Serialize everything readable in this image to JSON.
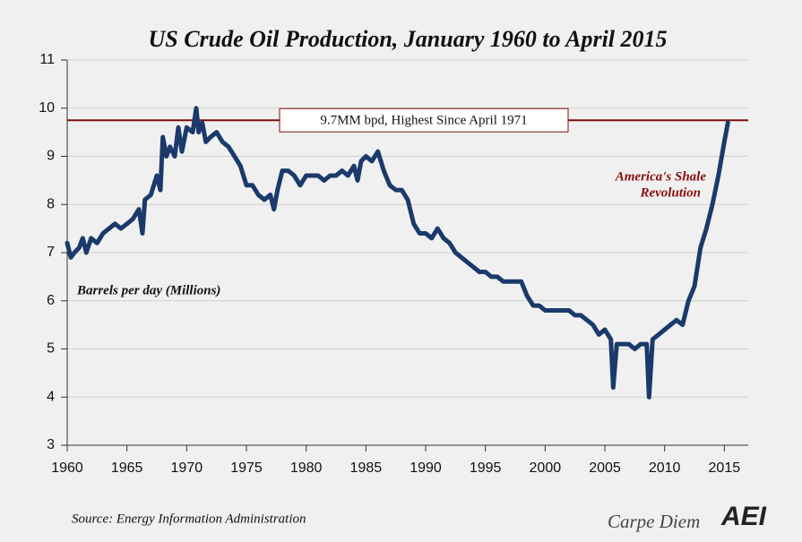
{
  "chart_data": {
    "type": "line",
    "title": "US Crude Oil Production, January 1960 to April 2015",
    "ylabel": "Barrels per day (Millions)",
    "source": "Source: Energy Information Administration",
    "brand": "Carpe Diem",
    "logo": "AEI",
    "annotations": [
      "9.7MM bpd, Highest Since April 1971",
      "America's Shale",
      "Revolution"
    ],
    "hline": 9.75,
    "hline_color": "#7a0c0c",
    "grid": true,
    "xlim": [
      1960,
      2017
    ],
    "xticks": [
      1960,
      1965,
      1970,
      1975,
      1980,
      1985,
      1990,
      1995,
      2000,
      2005,
      2010,
      2015
    ],
    "ylim": [
      3,
      11
    ],
    "yticks": [
      3,
      4,
      5,
      6,
      7,
      8,
      9,
      10,
      11
    ],
    "x": [
      1960,
      1960.3,
      1960.6,
      1961,
      1961.3,
      1961.6,
      1962,
      1962.5,
      1963,
      1963.5,
      1964,
      1964.5,
      1965,
      1965.5,
      1966,
      1966.3,
      1966.5,
      1967,
      1967.5,
      1967.8,
      1968,
      1968.3,
      1968.6,
      1969,
      1969.3,
      1969.6,
      1970,
      1970.5,
      1970.8,
      1971,
      1971.3,
      1971.6,
      1972,
      1972.5,
      1973,
      1973.5,
      1974,
      1974.5,
      1975,
      1975.5,
      1976,
      1976.5,
      1977,
      1977.3,
      1977.6,
      1978,
      1978.5,
      1979,
      1979.5,
      1980,
      1980.5,
      1981,
      1981.5,
      1982,
      1982.5,
      1983,
      1983.5,
      1984,
      1984.3,
      1984.6,
      1985,
      1985.5,
      1986,
      1986.5,
      1987,
      1987.5,
      1988,
      1988.5,
      1989,
      1989.5,
      1990,
      1990.5,
      1991,
      1991.5,
      1992,
      1992.5,
      1993,
      1993.5,
      1994,
      1994.5,
      1995,
      1995.5,
      1996,
      1996.5,
      1997,
      1997.5,
      1998,
      1998.5,
      1999,
      1999.5,
      2000,
      2000.5,
      2001,
      2001.5,
      2002,
      2002.5,
      2003,
      2003.5,
      2004,
      2004.5,
      2005,
      2005.5,
      2005.7,
      2006,
      2006.5,
      2007,
      2007.5,
      2008,
      2008.5,
      2008.7,
      2009,
      2009.5,
      2010,
      2010.5,
      2011,
      2011.5,
      2012,
      2012.5,
      2013,
      2013.5,
      2014,
      2014.5,
      2015,
      2015.3
    ],
    "series": [
      {
        "name": "US Crude Oil Production",
        "color": "#1b3a6b",
        "values": [
          7.2,
          6.9,
          7.0,
          7.1,
          7.3,
          7.0,
          7.3,
          7.2,
          7.4,
          7.5,
          7.6,
          7.5,
          7.6,
          7.7,
          7.9,
          7.4,
          8.1,
          8.2,
          8.6,
          8.3,
          9.4,
          9.0,
          9.2,
          9.0,
          9.6,
          9.1,
          9.6,
          9.5,
          10.0,
          9.5,
          9.7,
          9.3,
          9.4,
          9.5,
          9.3,
          9.2,
          9.0,
          8.8,
          8.4,
          8.4,
          8.2,
          8.1,
          8.2,
          7.9,
          8.3,
          8.7,
          8.7,
          8.6,
          8.4,
          8.6,
          8.6,
          8.6,
          8.5,
          8.6,
          8.6,
          8.7,
          8.6,
          8.8,
          8.5,
          8.9,
          9.0,
          8.9,
          9.1,
          8.7,
          8.4,
          8.3,
          8.3,
          8.1,
          7.6,
          7.4,
          7.4,
          7.3,
          7.5,
          7.3,
          7.2,
          7.0,
          6.9,
          6.8,
          6.7,
          6.6,
          6.6,
          6.5,
          6.5,
          6.4,
          6.4,
          6.4,
          6.4,
          6.1,
          5.9,
          5.9,
          5.8,
          5.8,
          5.8,
          5.8,
          5.8,
          5.7,
          5.7,
          5.6,
          5.5,
          5.3,
          5.4,
          5.2,
          4.2,
          5.1,
          5.1,
          5.1,
          5.0,
          5.1,
          5.1,
          4.0,
          5.2,
          5.3,
          5.4,
          5.5,
          5.6,
          5.5,
          6.0,
          6.3,
          7.1,
          7.5,
          8.0,
          8.6,
          9.3,
          9.7
        ]
      }
    ]
  }
}
